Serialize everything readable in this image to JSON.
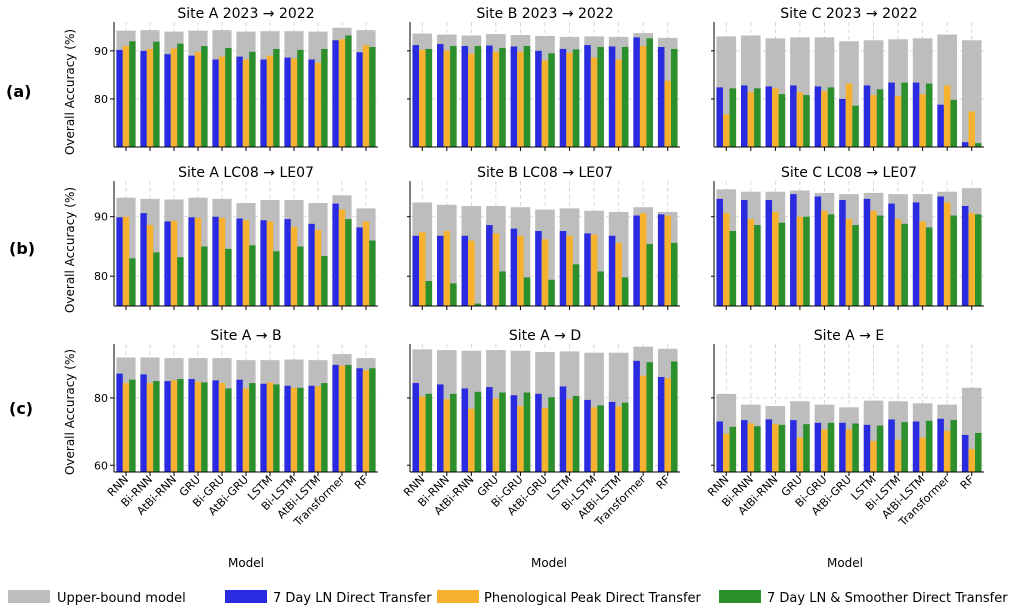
{
  "figure": {
    "row_labels": [
      "(a)",
      "(b)",
      "(c)"
    ],
    "ylabel": "Overall Accuracy (%)",
    "xlabel": "Model",
    "legend": [
      {
        "label": "Upper-bound model",
        "color": "#bdbdbd"
      },
      {
        "label": "7 Day LN Direct Transfer",
        "color": "#2a2ae0"
      },
      {
        "label": "Phenological Peak Direct Transfer",
        "color": "#f6b22e"
      },
      {
        "label": "7 Day LN & Smoother Direct Transfer",
        "color": "#2b8f2b"
      }
    ]
  },
  "chart_data": [
    {
      "type": "bar",
      "title": "Site A 2023 → 2022",
      "ylim": [
        70,
        96
      ],
      "yticks": [
        80,
        90
      ],
      "grid": true,
      "categories": [
        "RNN",
        "Bi-RNN",
        "AtBi-RNN",
        "GRU",
        "Bi-GRU",
        "AtBi-GRU",
        "LSTM",
        "Bi-LSTM",
        "AtBi-LSTM",
        "Transformer",
        "RF"
      ],
      "show_xticks": false,
      "series": [
        {
          "name": "Upper-bound model",
          "values": [
            94.2,
            94.3,
            94.0,
            94.2,
            94.3,
            94.0,
            94.1,
            94.1,
            94.0,
            94.8,
            94.3
          ]
        },
        {
          "name": "7 Day LN Direct Transfer",
          "values": [
            90.2,
            90.0,
            89.3,
            89.0,
            88.2,
            88.8,
            88.2,
            88.6,
            88.2,
            92.2,
            89.7
          ]
        },
        {
          "name": "Phenological Peak Direct Transfer",
          "values": [
            91.0,
            90.4,
            90.5,
            89.8,
            88.8,
            88.2,
            89.0,
            88.4,
            87.5,
            92.4,
            91.2
          ]
        },
        {
          "name": "7 Day LN & Smoother Direct Transfer",
          "values": [
            92.0,
            91.9,
            91.5,
            91.0,
            90.6,
            89.8,
            90.4,
            90.2,
            90.4,
            93.2,
            90.8
          ]
        }
      ]
    },
    {
      "type": "bar",
      "title": "Site B 2023 → 2022",
      "ylim": [
        70,
        96
      ],
      "yticks": [
        80,
        90
      ],
      "grid": true,
      "categories": [
        "RNN",
        "Bi-RNN",
        "AtBi-RNN",
        "GRU",
        "Bi-GRU",
        "AtBi-GRU",
        "LSTM",
        "Bi-LSTM",
        "AtBi-LSTM",
        "Transformer",
        "RF"
      ],
      "show_xticks": false,
      "series": [
        {
          "name": "Upper-bound model",
          "values": [
            93.6,
            93.4,
            93.2,
            93.5,
            93.3,
            93.1,
            92.9,
            93.0,
            92.9,
            93.7,
            92.7
          ]
        },
        {
          "name": "7 Day LN Direct Transfer",
          "values": [
            91.2,
            91.4,
            91.0,
            91.1,
            90.9,
            90.0,
            90.4,
            91.2,
            90.9,
            92.8,
            90.8
          ]
        },
        {
          "name": "Phenological Peak Direct Transfer",
          "values": [
            90.2,
            90.1,
            89.4,
            89.8,
            89.8,
            88.0,
            89.6,
            88.6,
            88.2,
            91.0,
            83.8
          ]
        },
        {
          "name": "7 Day LN & Smoother Direct Transfer",
          "values": [
            90.4,
            91.0,
            91.0,
            90.6,
            91.0,
            89.5,
            90.3,
            90.8,
            90.8,
            92.6,
            90.4
          ]
        }
      ]
    },
    {
      "type": "bar",
      "title": "Site C 2023 → 2022",
      "ylim": [
        70,
        96
      ],
      "yticks": [
        80,
        90
      ],
      "grid": true,
      "categories": [
        "RNN",
        "Bi-RNN",
        "AtBi-RNN",
        "GRU",
        "Bi-GRU",
        "AtBi-GRU",
        "LSTM",
        "Bi-LSTM",
        "AtBi-LSTM",
        "Transformer",
        "RF"
      ],
      "show_xticks": false,
      "series": [
        {
          "name": "Upper-bound model",
          "values": [
            93.0,
            93.2,
            92.6,
            92.8,
            92.8,
            92.0,
            92.2,
            92.4,
            92.6,
            93.4,
            92.2
          ]
        },
        {
          "name": "7 Day LN Direct Transfer",
          "values": [
            82.4,
            82.8,
            82.6,
            82.8,
            82.6,
            80.0,
            82.8,
            83.4,
            83.4,
            78.8,
            71.0
          ]
        },
        {
          "name": "Phenological Peak Direct Transfer",
          "values": [
            76.8,
            81.4,
            82.2,
            81.4,
            81.6,
            83.2,
            80.8,
            80.6,
            81.0,
            82.8,
            77.4
          ]
        },
        {
          "name": "7 Day LN & Smoother Direct Transfer",
          "values": [
            82.2,
            82.2,
            81.0,
            80.8,
            82.4,
            78.6,
            82.0,
            83.4,
            83.2,
            79.8,
            70.8
          ]
        }
      ]
    },
    {
      "type": "bar",
      "title": "Site A LC08 → LE07",
      "ylim": [
        75,
        96
      ],
      "yticks": [
        80,
        90
      ],
      "grid": true,
      "categories": [
        "RNN",
        "Bi-RNN",
        "AtBi-RNN",
        "GRU",
        "Bi-GRU",
        "AtBi-GRU",
        "LSTM",
        "Bi-LSTM",
        "AtBi-LSTM",
        "Transformer",
        "RF"
      ],
      "show_xticks": false,
      "series": [
        {
          "name": "Upper-bound model",
          "values": [
            93.2,
            93.0,
            92.9,
            93.2,
            93.0,
            92.3,
            92.8,
            92.8,
            92.3,
            93.6,
            91.4
          ]
        },
        {
          "name": "7 Day LN Direct Transfer",
          "values": [
            89.9,
            90.6,
            89.2,
            89.9,
            90.0,
            89.7,
            89.4,
            89.6,
            88.8,
            92.2,
            88.2
          ]
        },
        {
          "name": "Phenological Peak Direct Transfer",
          "values": [
            90.0,
            88.6,
            89.3,
            89.8,
            89.8,
            89.4,
            89.2,
            88.3,
            87.8,
            91.2,
            89.2
          ]
        },
        {
          "name": "7 Day LN & Smoother Direct Transfer",
          "values": [
            83.0,
            84.0,
            83.2,
            85.0,
            84.6,
            85.2,
            84.2,
            85.0,
            83.4,
            89.6,
            86.0
          ]
        }
      ]
    },
    {
      "type": "bar",
      "title": "Site B LC08 → LE07",
      "ylim": [
        75,
        96
      ],
      "yticks": [
        80,
        90
      ],
      "grid": true,
      "categories": [
        "RNN",
        "Bi-RNN",
        "AtBi-RNN",
        "GRU",
        "Bi-GRU",
        "AtBi-GRU",
        "LSTM",
        "Bi-LSTM",
        "AtBi-LSTM",
        "Transformer",
        "RF"
      ],
      "show_xticks": false,
      "series": [
        {
          "name": "Upper-bound model",
          "values": [
            92.4,
            92.0,
            91.8,
            91.8,
            91.6,
            91.2,
            91.4,
            91.0,
            90.8,
            91.6,
            90.8
          ]
        },
        {
          "name": "7 Day LN Direct Transfer",
          "values": [
            86.8,
            86.8,
            86.8,
            88.6,
            88.0,
            87.6,
            87.6,
            87.2,
            86.8,
            90.2,
            90.4
          ]
        },
        {
          "name": "Phenological Peak Direct Transfer",
          "values": [
            87.4,
            87.6,
            86.0,
            87.2,
            86.8,
            86.2,
            86.8,
            87.0,
            85.6,
            90.6,
            90.2
          ]
        },
        {
          "name": "7 Day LN & Smoother Direct Transfer",
          "values": [
            79.2,
            78.8,
            75.4,
            80.8,
            79.8,
            79.4,
            82.0,
            80.8,
            79.8,
            85.4,
            85.6
          ]
        }
      ]
    },
    {
      "type": "bar",
      "title": "Site C LC08 → LE07",
      "ylim": [
        75,
        96
      ],
      "yticks": [
        80,
        90
      ],
      "grid": true,
      "categories": [
        "RNN",
        "Bi-RNN",
        "AtBi-RNN",
        "GRU",
        "Bi-GRU",
        "AtBi-GRU",
        "LSTM",
        "Bi-LSTM",
        "AtBi-LSTM",
        "Transformer",
        "RF"
      ],
      "show_xticks": false,
      "series": [
        {
          "name": "Upper-bound model",
          "values": [
            94.6,
            94.2,
            94.2,
            94.4,
            94.0,
            93.8,
            94.0,
            93.8,
            93.8,
            94.2,
            94.8
          ]
        },
        {
          "name": "7 Day LN Direct Transfer",
          "values": [
            93.0,
            92.8,
            92.8,
            93.8,
            93.4,
            92.8,
            93.0,
            92.2,
            92.4,
            93.4,
            91.8
          ]
        },
        {
          "name": "Phenological Peak Direct Transfer",
          "values": [
            90.6,
            89.6,
            90.8,
            90.0,
            91.0,
            89.6,
            91.0,
            89.6,
            89.2,
            92.4,
            90.6
          ]
        },
        {
          "name": "7 Day LN & Smoother Direct Transfer",
          "values": [
            87.6,
            88.6,
            89.0,
            90.0,
            90.4,
            88.6,
            90.2,
            88.8,
            88.2,
            90.2,
            90.4
          ]
        }
      ]
    },
    {
      "type": "bar",
      "title": "Site A → B",
      "ylim": [
        58,
        96
      ],
      "yticks": [
        60,
        80
      ],
      "grid": true,
      "categories": [
        "RNN",
        "Bi-RNN",
        "AtBi-RNN",
        "GRU",
        "Bi-GRU",
        "AtBi-GRU",
        "LSTM",
        "Bi-LSTM",
        "AtBi-LSTM",
        "Transformer",
        "RF"
      ],
      "show_xticks": true,
      "series": [
        {
          "name": "Upper-bound model",
          "values": [
            92.0,
            92.0,
            91.8,
            91.8,
            91.8,
            91.2,
            91.2,
            91.4,
            91.2,
            93.0,
            91.8
          ]
        },
        {
          "name": "7 Day LN Direct Transfer",
          "values": [
            87.2,
            87.0,
            85.0,
            85.6,
            85.2,
            85.4,
            84.2,
            83.6,
            83.6,
            89.8,
            88.8
          ]
        },
        {
          "name": "Phenological Peak Direct Transfer",
          "values": [
            84.4,
            84.4,
            85.2,
            84.8,
            84.4,
            82.8,
            84.6,
            83.0,
            83.4,
            89.6,
            88.2
          ]
        },
        {
          "name": "7 Day LN & Smoother Direct Transfer",
          "values": [
            85.4,
            85.0,
            85.6,
            84.6,
            82.8,
            84.4,
            84.0,
            83.0,
            84.4,
            89.8,
            88.8
          ]
        }
      ]
    },
    {
      "type": "bar",
      "title": "Site A → D",
      "ylim": [
        58,
        96
      ],
      "yticks": [
        60,
        80
      ],
      "grid": true,
      "categories": [
        "RNN",
        "Bi-RNN",
        "AtBi-RNN",
        "GRU",
        "Bi-GRU",
        "AtBi-GRU",
        "LSTM",
        "Bi-LSTM",
        "AtBi-LSTM",
        "Transformer",
        "RF"
      ],
      "show_xticks": true,
      "series": [
        {
          "name": "Upper-bound model",
          "values": [
            94.4,
            94.2,
            94.0,
            94.2,
            94.0,
            93.6,
            93.8,
            93.4,
            93.4,
            95.2,
            94.6
          ]
        },
        {
          "name": "7 Day LN Direct Transfer",
          "values": [
            84.4,
            84.0,
            82.8,
            83.2,
            80.8,
            81.2,
            83.4,
            79.4,
            78.8,
            91.0,
            86.2
          ]
        },
        {
          "name": "Phenological Peak Direct Transfer",
          "values": [
            80.4,
            79.6,
            76.8,
            79.8,
            77.6,
            77.0,
            79.6,
            77.2,
            77.4,
            86.6,
            85.8
          ]
        },
        {
          "name": "7 Day LN & Smoother Direct Transfer",
          "values": [
            81.2,
            81.2,
            81.8,
            81.6,
            81.6,
            80.2,
            80.6,
            77.8,
            78.6,
            90.6,
            90.8
          ]
        }
      ]
    },
    {
      "type": "bar",
      "title": "Site A → E",
      "ylim": [
        58,
        96
      ],
      "yticks": [
        60,
        80
      ],
      "grid": true,
      "categories": [
        "RNN",
        "Bi-RNN",
        "AtBi-RNN",
        "GRU",
        "Bi-GRU",
        "AtBi-GRU",
        "LSTM",
        "Bi-LSTM",
        "AtBi-LSTM",
        "Transformer",
        "RF"
      ],
      "show_xticks": true,
      "series": [
        {
          "name": "Upper-bound model",
          "values": [
            81.2,
            78.0,
            77.6,
            79.0,
            78.0,
            77.2,
            79.2,
            79.0,
            78.4,
            78.0,
            83.0
          ]
        },
        {
          "name": "7 Day LN Direct Transfer",
          "values": [
            73.0,
            73.4,
            73.6,
            73.4,
            72.6,
            72.6,
            72.0,
            73.6,
            73.0,
            73.8,
            69.0
          ]
        },
        {
          "name": "Phenological Peak Direct Transfer",
          "values": [
            69.4,
            72.4,
            72.2,
            68.2,
            70.6,
            70.6,
            67.2,
            67.6,
            68.2,
            70.2,
            64.8
          ]
        },
        {
          "name": "7 Day LN & Smoother Direct Transfer",
          "values": [
            71.4,
            71.6,
            72.0,
            72.2,
            72.6,
            72.4,
            71.8,
            72.8,
            73.2,
            73.4,
            69.6
          ]
        }
      ]
    }
  ]
}
